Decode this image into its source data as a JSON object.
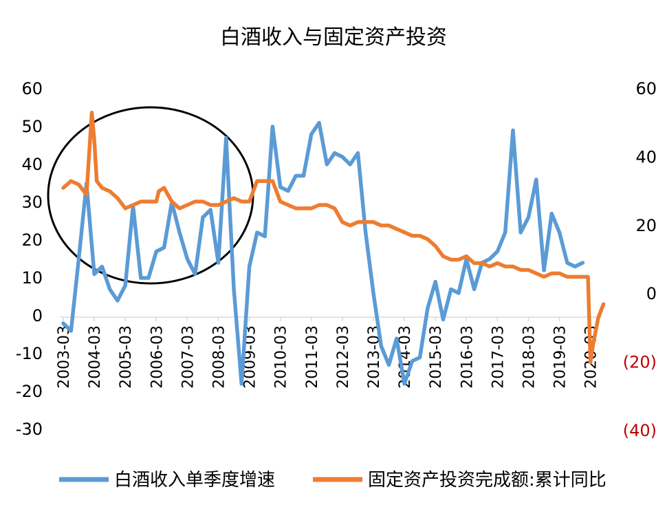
{
  "chart_data": {
    "type": "line",
    "title": "白酒收入与固定资产投资",
    "x_tick_labels": [
      "2003-03",
      "2004-03",
      "2005-03",
      "2006-03",
      "2007-03",
      "2008-03",
      "2009-03",
      "2010-03",
      "2011-03",
      "2012-03",
      "2013-03",
      "2014-03",
      "2015-03",
      "2016-03",
      "2017-03",
      "2018-03",
      "2019-03",
      "2020-03"
    ],
    "left_axis": {
      "ticks": [
        "60",
        "50",
        "40",
        "30",
        "20",
        "10",
        "0",
        "-10",
        "-20",
        "-30"
      ],
      "range": [
        -30,
        60
      ]
    },
    "right_axis": {
      "ticks": [
        "60",
        "40",
        "20",
        "0",
        "(20)",
        "(40)"
      ],
      "negative_color": "#c00000",
      "range": [
        -40,
        60
      ]
    },
    "series": [
      {
        "name": "白酒收入单季度增速",
        "axis": "left",
        "color": "#5b9bd5",
        "x": [
          2003.0,
          2003.25,
          2003.5,
          2003.75,
          2004.0,
          2004.25,
          2004.5,
          2004.75,
          2005.0,
          2005.25,
          2005.5,
          2005.75,
          2006.0,
          2006.25,
          2006.5,
          2006.75,
          2007.0,
          2007.25,
          2007.5,
          2007.75,
          2008.0,
          2008.25,
          2008.5,
          2008.75,
          2009.0,
          2009.25,
          2009.5,
          2009.75,
          2010.0,
          2010.25,
          2010.5,
          2010.75,
          2011.0,
          2011.25,
          2011.5,
          2011.75,
          2012.0,
          2012.25,
          2012.5,
          2012.75,
          2013.0,
          2013.25,
          2013.5,
          2013.75,
          2014.0,
          2014.25,
          2014.5,
          2014.75,
          2015.0,
          2015.25,
          2015.5,
          2015.75,
          2016.0,
          2016.25,
          2016.5,
          2016.75,
          2017.0,
          2017.25,
          2017.5,
          2017.75,
          2018.0,
          2018.25,
          2018.5,
          2018.75,
          2019.0,
          2019.25,
          2019.5,
          2019.75
        ],
        "values": [
          -2,
          -4,
          15,
          35,
          11,
          13,
          7,
          4,
          8,
          29,
          10,
          10,
          17,
          18,
          30,
          22,
          15,
          11,
          26,
          28,
          14,
          47,
          7,
          -18,
          13,
          22,
          21,
          50,
          34,
          33,
          37,
          37,
          48,
          51,
          40,
          43,
          42,
          40,
          43,
          22,
          6,
          -8,
          -13,
          -6,
          -18,
          -12,
          -11,
          2,
          9,
          -1,
          7,
          6,
          15,
          7,
          14,
          15,
          17,
          22,
          49,
          22,
          26,
          36,
          12,
          27,
          22,
          14,
          13,
          14
        ]
      },
      {
        "name": "固定资产投资完成额:累计同比",
        "axis": "right",
        "color": "#ed7d31",
        "x": [
          2003.0,
          2003.25,
          2003.5,
          2003.75,
          2003.92,
          2004.0,
          2004.08,
          2004.25,
          2004.5,
          2004.75,
          2005.0,
          2005.25,
          2005.5,
          2005.75,
          2006.0,
          2006.08,
          2006.25,
          2006.5,
          2006.75,
          2007.0,
          2007.25,
          2007.5,
          2007.75,
          2008.0,
          2008.25,
          2008.5,
          2008.75,
          2009.0,
          2009.25,
          2009.5,
          2009.75,
          2010.0,
          2010.25,
          2010.5,
          2010.75,
          2011.0,
          2011.25,
          2011.5,
          2011.75,
          2012.0,
          2012.25,
          2012.5,
          2012.75,
          2013.0,
          2013.25,
          2013.5,
          2013.75,
          2014.0,
          2014.25,
          2014.5,
          2014.75,
          2015.0,
          2015.25,
          2015.5,
          2015.75,
          2016.0,
          2016.25,
          2016.5,
          2016.75,
          2017.0,
          2017.25,
          2017.5,
          2017.75,
          2018.0,
          2018.25,
          2018.5,
          2018.75,
          2019.0,
          2019.25,
          2019.5,
          2019.75,
          2019.92,
          2020.0,
          2020.08,
          2020.25,
          2020.42
        ],
        "values": [
          31,
          33,
          32,
          29,
          53,
          45,
          33,
          31,
          30,
          28,
          25,
          26,
          27,
          27,
          27,
          30,
          31,
          27,
          25,
          26,
          27,
          27,
          26,
          26,
          27,
          28,
          27,
          27,
          33,
          33,
          33,
          27,
          26,
          25,
          25,
          25,
          26,
          26,
          25,
          21,
          20,
          21,
          21,
          21,
          20,
          20,
          19,
          18,
          17,
          17,
          16,
          14,
          11,
          10,
          10,
          11,
          9,
          9,
          8,
          9,
          8,
          8,
          7,
          7,
          6,
          5,
          6,
          6,
          5,
          5,
          5,
          5,
          -20,
          -15,
          -7,
          -3
        ]
      }
    ],
    "legend_position": "bottom",
    "grid": false
  }
}
